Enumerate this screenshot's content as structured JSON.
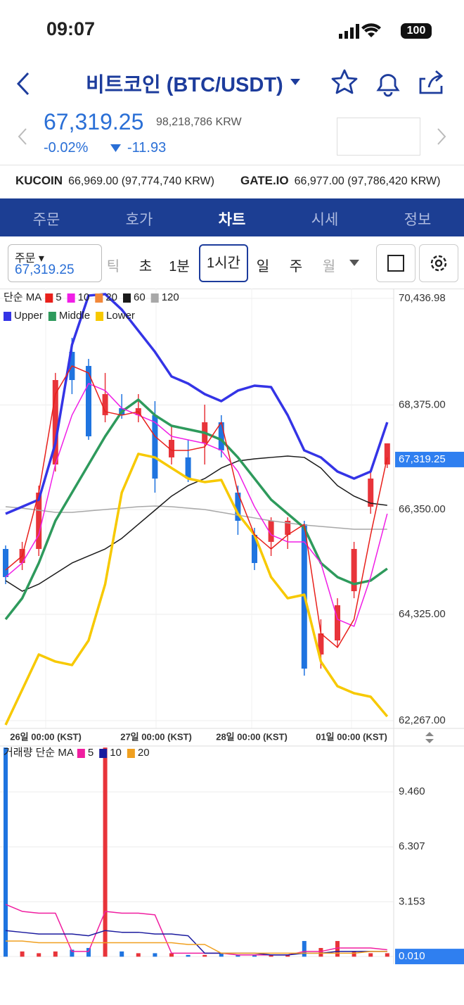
{
  "status_bar": {
    "time": "09:07",
    "battery": "100"
  },
  "header": {
    "title": "비트코인 (BTC/USDT)"
  },
  "price": {
    "last": "67,319.25",
    "krw": "98,218,786 KRW",
    "change_pct": "-0.02%",
    "change": "-11.93"
  },
  "exchanges": [
    {
      "name": "KUCOIN",
      "price": "66,969.00 (97,774,740 KRW)"
    },
    {
      "name": "GATE.IO",
      "price": "66,977.00 (97,786,420 KRW)"
    }
  ],
  "tabs": [
    "주문",
    "호가",
    "차트",
    "시세",
    "정보"
  ],
  "active_tab": 2,
  "toolbar": {
    "order_label": "주문",
    "order_price": "67,319.25",
    "intervals": [
      "틱",
      "초",
      "1분",
      "1시간",
      "일",
      "주",
      "월"
    ],
    "active_interval": 3
  },
  "chart_data": [
    {
      "type": "candlestick",
      "legend_title": "단순 MA",
      "x_labels": [
        "26일 00:00 (KST)",
        "27일 00:00 (KST)",
        "28일 00:00 (KST)",
        "01일 00:00 (KST)"
      ],
      "ylim": [
        62117,
        70627
      ],
      "yticks": [
        {
          "value": 70436.98,
          "label": "70,436.98"
        },
        {
          "value": 68375,
          "label": "68,375.00"
        },
        {
          "value": 66350,
          "label": "66,350.00"
        },
        {
          "value": 64325,
          "label": "64,325.00"
        },
        {
          "value": 62267,
          "label": "62,267.00"
        }
      ],
      "current_price": {
        "value": 67319.25,
        "label": "67,319.25"
      },
      "up_color": "#e8343a",
      "down_color": "#1f74e0",
      "open": [
        65589,
        65317,
        65589,
        67223,
        69402,
        69130,
        68177,
        68313,
        68177,
        68177,
        67360,
        67360,
        67632,
        68040,
        66679,
        65862,
        65726,
        65862,
        66066,
        63547,
        63819,
        64772,
        66406,
        67223
      ],
      "close": [
        65045,
        65589,
        66679,
        68857,
        68857,
        67768,
        68585,
        68177,
        68313,
        66951,
        67700,
        66951,
        68040,
        67496,
        66134,
        65317,
        66134,
        66134,
        63274,
        63955,
        64500,
        65589,
        66951,
        67632
      ],
      "high": [
        65657,
        65726,
        66815,
        68994,
        69674,
        69266,
        68994,
        68585,
        68585,
        68449,
        67972,
        67700,
        68381,
        68177,
        66815,
        65998,
        66202,
        66202,
        66134,
        64228,
        64636,
        65726,
        67087,
        67632
      ],
      "low": [
        64909,
        65181,
        65453,
        67087,
        68585,
        67700,
        68040,
        68108,
        68040,
        66679,
        67223,
        66883,
        67223,
        67360,
        65862,
        65181,
        65453,
        65589,
        63138,
        63274,
        63683,
        64636,
        66270,
        67155
      ],
      "series": [
        {
          "name": "5",
          "color": "#e8201b",
          "values": [
            65181,
            65453,
            66679,
            68585,
            69130,
            68994,
            68245,
            68177,
            68245,
            67768,
            67496,
            67496,
            67564,
            68040,
            66679,
            65862,
            65589,
            65862,
            66066,
            63955,
            63683,
            64228,
            65862,
            67360
          ]
        },
        {
          "name": "10",
          "color": "#f01ee6",
          "values": [
            65045,
            65317,
            65862,
            67223,
            68177,
            68789,
            68653,
            68313,
            68177,
            68040,
            67768,
            67700,
            67632,
            67496,
            67087,
            66406,
            65862,
            65726,
            65726,
            65317,
            64228,
            64092,
            65045,
            66270
          ]
        },
        {
          "name": "20",
          "color": "#f2883a",
          "values": [
            64228,
            64636,
            65317,
            66134,
            66679,
            67223,
            67768,
            68245,
            68476,
            68177,
            67972,
            67904,
            67836,
            67700,
            67360,
            66951,
            66543,
            66270,
            65998,
            65317,
            65045,
            64909,
            64977,
            65208
          ]
        },
        {
          "name": "60",
          "color": "#1a1a1a",
          "values": [
            64977,
            64772,
            64909,
            65113,
            65317,
            65453,
            65589,
            65794,
            66066,
            66338,
            66611,
            66815,
            66951,
            67155,
            67291,
            67332,
            67360,
            67387,
            67360,
            67155,
            66815,
            66611,
            66474,
            66434
          ]
        },
        {
          "name": "120",
          "color": "#a8a8a8",
          "values": [
            66406,
            66379,
            66338,
            66297,
            66297,
            66325,
            66352,
            66379,
            66406,
            66420,
            66406,
            66379,
            66352,
            66297,
            66243,
            66189,
            66134,
            66093,
            66052,
            66025,
            65998,
            65971,
            65971,
            65971
          ]
        }
      ],
      "band_series": [
        {
          "name": "Upper",
          "color": "#3434e6",
          "values": [
            66270,
            66406,
            66543,
            67632,
            69538,
            70491,
            70519,
            70219,
            69811,
            69402,
            68926,
            68789,
            68585,
            68449,
            68653,
            68748,
            68721,
            68177,
            67496,
            67360,
            67087,
            66951,
            67087,
            68040
          ]
        },
        {
          "name": "Middle",
          "color": "#2e9a5c",
          "values": [
            64228,
            64636,
            65317,
            66134,
            66679,
            67223,
            67768,
            68245,
            68476,
            68177,
            67972,
            67904,
            67836,
            67700,
            67360,
            66951,
            66543,
            66270,
            65998,
            65317,
            65045,
            64909,
            64977,
            65208
          ]
        },
        {
          "name": "Lower",
          "color": "#f7c900",
          "values": [
            62185,
            62866,
            63547,
            63411,
            63343,
            63819,
            64909,
            66679,
            67428,
            67360,
            67155,
            66951,
            66883,
            66924,
            66270,
            65862,
            65045,
            64636,
            64704,
            63411,
            62934,
            62798,
            62730,
            62349
          ]
        }
      ]
    },
    {
      "type": "bar",
      "legend_title": "거래량 단순 MA",
      "ylim": [
        -0.43,
        12.09
      ],
      "yticks": [
        {
          "value": 9.46,
          "label": "9.460"
        },
        6.307,
        3.153,
        {
          "value": 0.01,
          "label": "0.010"
        }
      ],
      "highlight_tick": 3,
      "values": [
        12.0,
        0.3,
        0.2,
        0.3,
        0.4,
        0.5,
        12.0,
        0.3,
        0.2,
        0.2,
        0.2,
        0.1,
        0.1,
        0.2,
        0.1,
        0.1,
        0.1,
        0.1,
        0.9,
        0.5,
        0.9,
        0.3,
        0.2,
        0.2
      ],
      "series": [
        {
          "name": "5",
          "color": "#f01ea0",
          "values": [
            3.0,
            2.6,
            2.5,
            2.5,
            0.3,
            0.3,
            2.6,
            2.5,
            2.5,
            2.4,
            0.2,
            0.2,
            0.2,
            0.2,
            0.1,
            0.1,
            0.1,
            0.1,
            0.3,
            0.3,
            0.5,
            0.5,
            0.5,
            0.4
          ]
        },
        {
          "name": "10",
          "color": "#1a1a9e",
          "values": [
            1.5,
            1.4,
            1.3,
            1.3,
            1.3,
            1.2,
            1.5,
            1.4,
            1.4,
            1.3,
            1.3,
            1.2,
            0.2,
            0.2,
            0.2,
            0.2,
            0.1,
            0.1,
            0.2,
            0.2,
            0.3,
            0.3,
            0.3,
            0.3
          ]
        },
        {
          "name": "20",
          "color": "#f0a020",
          "values": [
            0.9,
            0.9,
            0.8,
            0.8,
            0.8,
            0.8,
            0.8,
            0.8,
            0.8,
            0.8,
            0.8,
            0.7,
            0.7,
            0.2,
            0.2,
            0.2,
            0.2,
            0.2,
            0.2,
            0.2,
            0.2,
            0.2,
            0.3,
            0.3
          ]
        }
      ]
    }
  ]
}
